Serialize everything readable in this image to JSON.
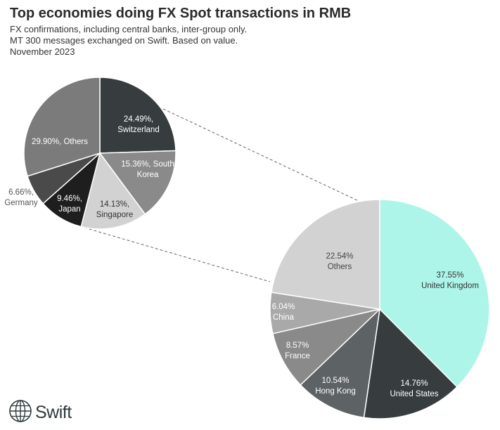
{
  "header": {
    "title": "Top economies doing FX Spot transactions in RMB",
    "subtitle_lines": [
      "FX confirmations, including central banks, inter-group only.",
      "MT 300 messages exchanged on Swift. Based on value.",
      "November 2023"
    ]
  },
  "brand": {
    "name": "Swift",
    "icon": "globe-icon"
  },
  "chart_data": [
    {
      "type": "pie",
      "role": "breakdown-of-others",
      "slices": [
        {
          "name": "Switzerland",
          "value": 24.49,
          "label": "24.49%,",
          "label2": "Switzerland",
          "color": "#373d3f",
          "text_color": "#ffffff"
        },
        {
          "name": "South Korea",
          "value": 15.36,
          "label": "15.36%, South",
          "label2": "Korea",
          "color": "#8a8a8a",
          "text_color": "#ffffff"
        },
        {
          "name": "Singapore",
          "value": 14.13,
          "label": "14.13%,",
          "label2": "Singapore",
          "color": "#d2d2d2",
          "text_color": "#333333"
        },
        {
          "name": "Japan",
          "value": 9.46,
          "label": "9.46%,",
          "label2": "Japan",
          "color": "#1e1e1e",
          "text_color": "#ffffff"
        },
        {
          "name": "Germany",
          "value": 6.66,
          "label": "6.66%,",
          "label2": "Germany",
          "color": "#4a4a4a",
          "text_color": "#555555"
        },
        {
          "name": "Others",
          "value": 29.9,
          "label": "29.90%, Others",
          "label2": "",
          "color": "#7b7b7b",
          "text_color": "#ffffff"
        }
      ]
    },
    {
      "type": "pie",
      "role": "main",
      "slices": [
        {
          "name": "United Kingdom",
          "value": 37.55,
          "label": "37.55%",
          "label2": "United Kingdom",
          "color": "#adf5e8",
          "text_color": "#333333"
        },
        {
          "name": "United States",
          "value": 14.76,
          "label": "14.76%",
          "label2": "United States",
          "color": "#373d3f",
          "text_color": "#ffffff"
        },
        {
          "name": "Hong Kong",
          "value": 10.54,
          "label": "10.54%",
          "label2": "Hong Kong",
          "color": "#5d6264",
          "text_color": "#ffffff"
        },
        {
          "name": "France",
          "value": 8.57,
          "label": "8.57%",
          "label2": "France",
          "color": "#8a8a8a",
          "text_color": "#ffffff"
        },
        {
          "name": "China",
          "value": 6.04,
          "label": "6.04%",
          "label2": "China",
          "color": "#a9a9a9",
          "text_color": "#ffffff"
        },
        {
          "name": "Others",
          "value": 22.54,
          "label": "22.54%",
          "label2": "Others",
          "color": "#d2d2d2",
          "text_color": "#444444"
        }
      ]
    }
  ]
}
